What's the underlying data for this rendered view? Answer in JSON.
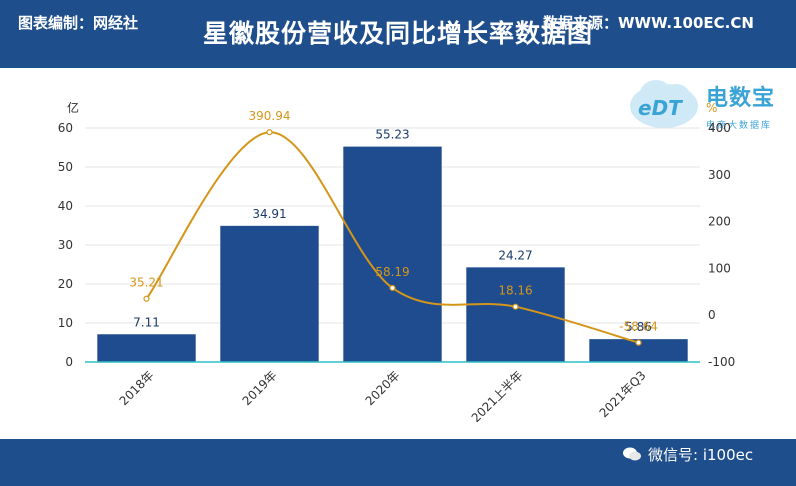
{
  "header": {
    "title": "星徽股份营收及同比增长率数据图"
  },
  "logo": {
    "name": "电数宝",
    "sub": "电商大数据库",
    "mark": "eDT"
  },
  "footer": {
    "left": "图表编制：网经社",
    "right": "数据来源：WWW.100EC.CN",
    "wechat": "微信号: i100ec"
  },
  "colors": {
    "header": "#1f4e8c",
    "bar": "#1e4c8f",
    "line": "#d4961a",
    "axis": "#2fbfc9"
  },
  "chart_data": {
    "type": "bar",
    "categories": [
      "2018年",
      "2019年",
      "2020年",
      "2021上半年",
      "2021年Q3"
    ],
    "series": [
      {
        "name": "",
        "type": "bar",
        "values": [
          7.11,
          34.91,
          55.23,
          24.27,
          5.86
        ],
        "axis": "left"
      },
      {
        "name": "",
        "type": "line",
        "values": [
          35.21,
          390.94,
          58.19,
          18.16,
          -58.64
        ],
        "axis": "right"
      }
    ],
    "data_labels": {
      "bar": [
        "7.11",
        "34.91",
        "55.23",
        "24.27",
        "5.86"
      ],
      "line": [
        "35.21",
        "390.94",
        "58.19",
        "18.16",
        "-58.64"
      ]
    },
    "y_unit": "亿",
    "y2_unit": "%",
    "ylim": [
      0,
      60
    ],
    "yticks": [
      0,
      10,
      20,
      30,
      40,
      50,
      60
    ],
    "y2lim": [
      -100,
      400
    ],
    "y2ticks": [
      -100,
      0,
      100,
      200,
      300,
      400
    ],
    "grid": true
  }
}
